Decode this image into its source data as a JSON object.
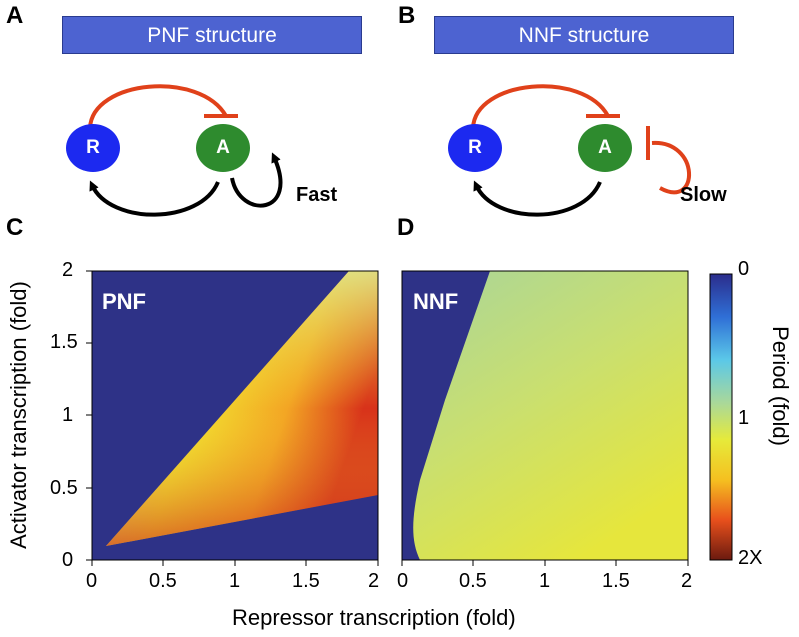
{
  "panels": {
    "a": {
      "letter": "A",
      "title": "PNF structure",
      "loop_label": "Fast"
    },
    "b": {
      "letter": "B",
      "title": "NNF structure",
      "loop_label": "Slow"
    },
    "c": {
      "letter": "C",
      "plot_label": "PNF"
    },
    "d": {
      "letter": "D",
      "plot_label": "NNF"
    }
  },
  "nodes": {
    "repressor": "R",
    "activator": "A"
  },
  "axes": {
    "xlabel": "Repressor transcription (fold)",
    "ylabel": "Activator transcription (fold)",
    "xticks": [
      "0",
      "0.5",
      "1",
      "1.5",
      "2"
    ],
    "yticks": [
      "0",
      "0.5",
      "1",
      "1.5",
      "2"
    ]
  },
  "colorbar": {
    "label": "Period (fold)",
    "tick_top": "0",
    "tick_mid": "1",
    "tick_bottom": "2X",
    "colors": [
      "#2b2d8c",
      "#2f6fd6",
      "#5bc8e8",
      "#a9d89a",
      "#e6ea3a",
      "#f5c020",
      "#e8501c",
      "#6b1a0f"
    ]
  },
  "colors": {
    "background_dark": "#2e3287",
    "repressor_node": "#1c29f0",
    "activator_node": "#2e8b2e",
    "activation_arrow": "#000000",
    "repression_arrow": "#e0411a",
    "banner": "#4d63d1"
  },
  "chart_data": [
    {
      "type": "heatmap",
      "panel": "PNF",
      "xlim": [
        0,
        2
      ],
      "ylim": [
        0,
        2
      ],
      "oscillation_region": "wedge between upper boundary from (0.1,0.1) to (1.8,2) and lower boundary from (0.1,0.1) to (2,0.43)",
      "period_range": [
        1,
        2
      ]
    },
    {
      "type": "heatmap",
      "panel": "NNF",
      "xlim": [
        0,
        2
      ],
      "ylim": [
        0,
        2
      ],
      "oscillation_region": "right of boundary from (0.12,0) through (0.3,1) to (0.6,2)",
      "period_range": [
        1,
        1.3
      ]
    }
  ]
}
